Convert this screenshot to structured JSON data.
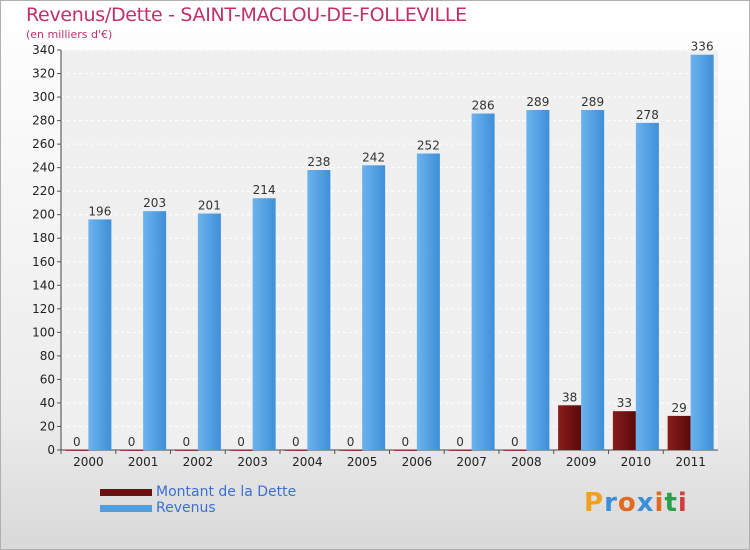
{
  "chart_data": {
    "type": "bar",
    "title": "Revenus/Dette - SAINT-MACLOU-DE-FOLLEVILLE",
    "subtitle": "(en milliers d'€)",
    "categories": [
      "2000",
      "2001",
      "2002",
      "2003",
      "2004",
      "2005",
      "2006",
      "2007",
      "2008",
      "2009",
      "2010",
      "2011"
    ],
    "series": [
      {
        "name": "Montant de la Dette",
        "color": "#6e1010",
        "values": [
          0,
          0,
          0,
          0,
          0,
          0,
          0,
          0,
          0,
          38,
          33,
          29
        ]
      },
      {
        "name": "Revenus",
        "color": "#4f9fe2",
        "values": [
          196,
          203,
          201,
          214,
          238,
          242,
          252,
          286,
          289,
          289,
          278,
          336
        ]
      }
    ],
    "ylim": [
      0,
      340
    ],
    "yticks": [
      0,
      20,
      40,
      60,
      80,
      100,
      120,
      140,
      160,
      180,
      200,
      220,
      240,
      260,
      280,
      300,
      320,
      340
    ],
    "grid": true,
    "legend": "bottom-left"
  },
  "logo": {
    "text": "Proxiti"
  }
}
